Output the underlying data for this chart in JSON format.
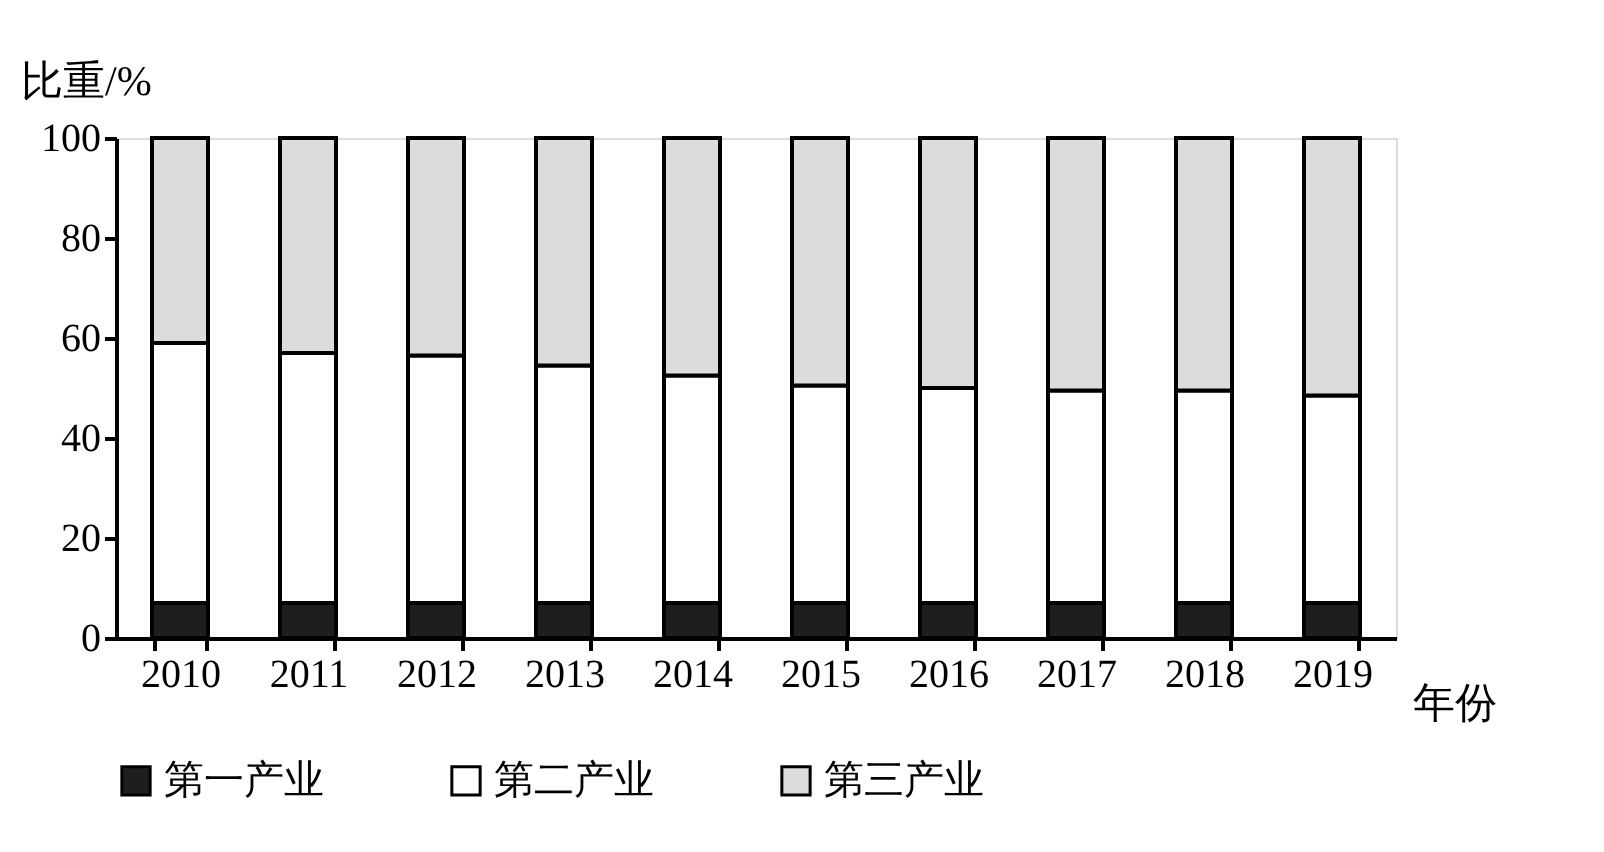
{
  "chart_data": {
    "type": "bar",
    "stacked": true,
    "ylabel": "比重/%",
    "xlabel": "年份",
    "categories": [
      "2010",
      "2011",
      "2012",
      "2013",
      "2014",
      "2015",
      "2016",
      "2017",
      "2018",
      "2019"
    ],
    "series": [
      {
        "name": "第一产业",
        "color": "#1e1e1e",
        "values": [
          7,
          7,
          7,
          7,
          7,
          7,
          7,
          7,
          7,
          7
        ]
      },
      {
        "name": "第二产业",
        "color": "#ffffff",
        "values": [
          52,
          50,
          49.5,
          47.5,
          45.5,
          43.5,
          43,
          42.5,
          42.5,
          41.5
        ]
      },
      {
        "name": "第三产业",
        "color": "#dcdcdc",
        "values": [
          41,
          43,
          43.5,
          45.5,
          47.5,
          49.5,
          50,
          50.5,
          50.5,
          51.5
        ]
      }
    ],
    "ylim": [
      0,
      100
    ],
    "yticks": [
      0,
      20,
      40,
      60,
      80,
      100
    ],
    "grid": false,
    "legend": "bottom"
  }
}
